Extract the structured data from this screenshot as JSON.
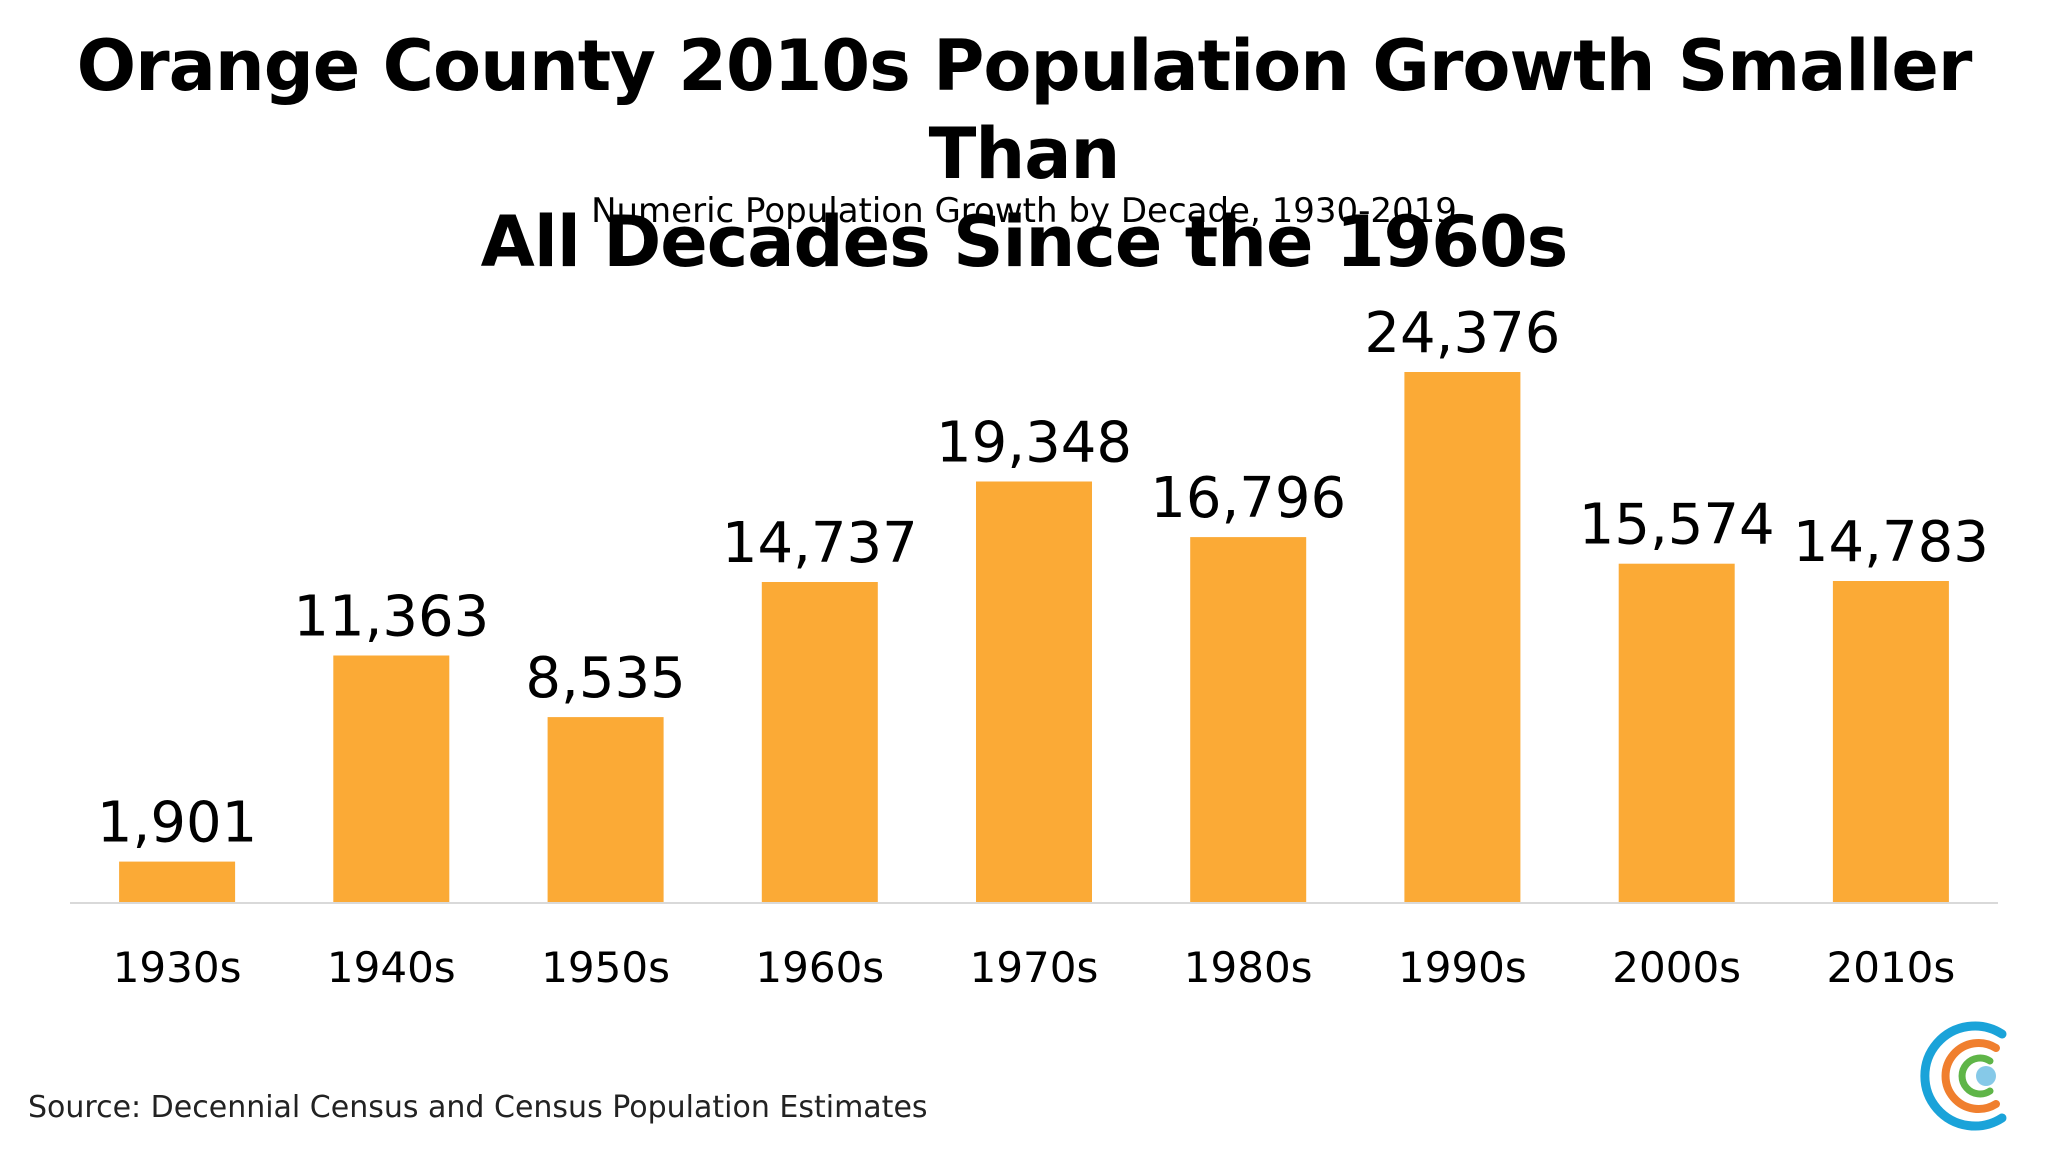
{
  "header": {
    "title_line1": "Orange County 2010s Population Growth Smaller Than",
    "title_line2": "All Decades Since the 1960s",
    "subtitle": "Numeric Population Growth by Decade, 1930-2019"
  },
  "footer": {
    "source": "Source: Decennial Census and Census Population Estimates"
  },
  "colors": {
    "bar": "#FBAA36",
    "baseline": "#D9D9D9",
    "logo_outer": "#1AA3D9",
    "logo_middle": "#F07F2E",
    "logo_inner": "#5FB548",
    "logo_dot": "#86C9E8"
  },
  "chart_data": {
    "type": "bar",
    "title": "Orange County 2010s Population Growth Smaller Than All Decades Since the 1960s",
    "subtitle": "Numeric Population Growth by Decade, 1930-2019",
    "categories": [
      "1930s",
      "1940s",
      "1950s",
      "1960s",
      "1970s",
      "1980s",
      "1990s",
      "2000s",
      "2010s"
    ],
    "values": [
      1901,
      11363,
      8535,
      14737,
      19348,
      16796,
      24376,
      15574,
      14783
    ],
    "value_labels": [
      "1,901",
      "11,363",
      "8,535",
      "14,737",
      "19,348",
      "16,796",
      "24,376",
      "15,574",
      "14,783"
    ],
    "xlabel": "",
    "ylabel": "",
    "ylim": [
      0,
      24376
    ],
    "grid": false,
    "legend": "none"
  }
}
